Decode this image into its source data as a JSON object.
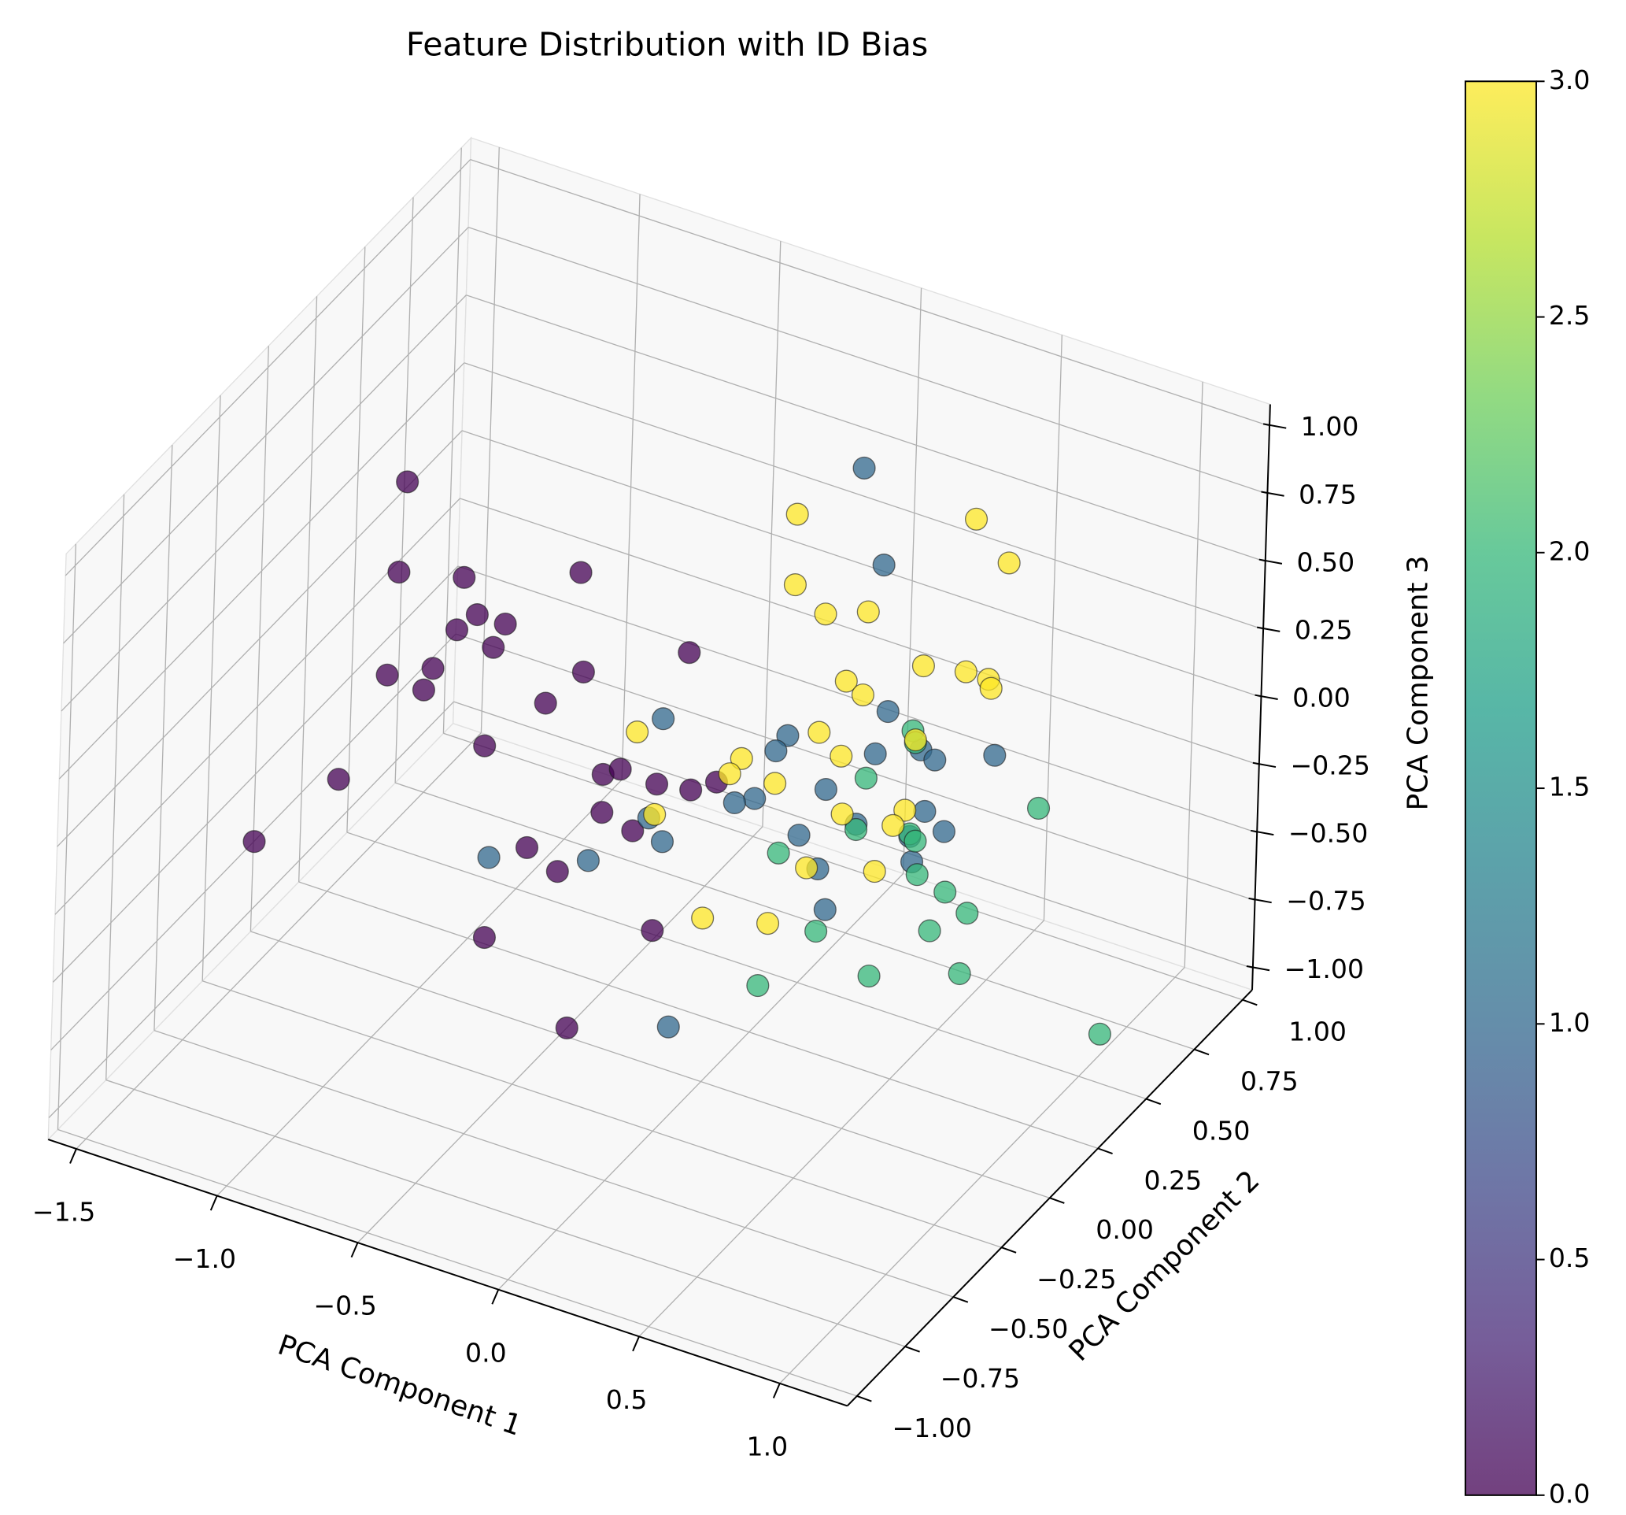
{
  "chart_data": {
    "type": "scatter3d",
    "title": "Feature Distribution with ID Bias",
    "xlabel": "PCA Component 1",
    "ylabel": "PCA Component 2",
    "zlabel": "PCA Component 3",
    "x": [
      -0.9,
      -0.92,
      -0.69,
      -0.28,
      -0.64,
      -0.54,
      -0.71,
      -0.58,
      -0.79,
      -0.95,
      -0.82,
      -0.26,
      0.11,
      -0.39,
      -0.6,
      -1.11,
      -0.18,
      -0.12,
      0.01,
      0.13,
      0.22,
      -0.18,
      -0.07,
      -0.44,
      -0.33,
      -1.4,
      -0.58,
      0.01,
      -0.28,
      0.18,
      0.26,
      -0.5,
      0.29,
      -0.06,
      -0.1,
      0.25,
      0.41,
      0.46,
      0.67,
      0.08,
      -0.17,
      -0.24,
      0.43,
      0.19,
      -0.01,
      0.5,
      0.38,
      -0.49,
      -0.54,
      -0.77,
      0.06,
      0.39,
      -0.42,
      0.09,
      -0.12,
      0.38,
      0.39,
      0.22,
      0.83,
      0.19,
      0.38,
      0.4,
      -0.08,
      0.41,
      0.51,
      0.59,
      0.46,
      0.06,
      0.19,
      0.58,
      0.57,
      1.07,
      -0.05,
      0.58,
      0.7,
      -0.05,
      0.06,
      0.21,
      0.41,
      0.56,
      0.64,
      0.65,
      0.14,
      0.2,
      -0.59,
      0.05,
      0.13,
      -0.22,
      -0.26,
      -0.1,
      0.39,
      0.14,
      0.36,
      0.32,
      -0.52,
      0.02,
      0.26,
      -0.34,
      -0.11
    ],
    "y": [
      -0.3,
      -0.3,
      -0.3,
      -0.3,
      -0.3,
      -0.3,
      -0.3,
      -0.3,
      -0.3,
      -0.3,
      -0.3,
      -0.3,
      -0.3,
      -0.3,
      -0.3,
      -0.3,
      -0.3,
      -0.3,
      -0.3,
      -0.3,
      -0.3,
      -0.3,
      -0.3,
      -0.3,
      -0.3,
      -0.3,
      -0.3,
      -0.3,
      -0.3,
      0.5,
      0.5,
      0.5,
      0.5,
      0.5,
      0.5,
      0.5,
      0.5,
      0.5,
      0.5,
      0.5,
      0.5,
      0.5,
      0.5,
      0.5,
      0.5,
      0.5,
      0.5,
      0.5,
      0.5,
      0,
      0.5,
      0.5,
      0,
      0.5,
      0,
      0.5,
      0.5,
      0.5,
      0.5,
      0.5,
      0.5,
      0.5,
      0.5,
      0.5,
      0.5,
      0.5,
      0.5,
      0.5,
      0,
      0,
      0.5,
      0.5,
      0.5,
      0.5,
      0.5,
      0.5,
      0.5,
      0.5,
      0.5,
      0.5,
      0.5,
      0.5,
      0.5,
      0.5,
      0.5,
      0.5,
      0.5,
      0.5,
      0.5,
      0.5,
      0.5,
      0.5,
      0.5,
      0.5,
      0.5,
      0.5,
      0.5,
      0.5,
      0.5
    ],
    "z": [
      1.04,
      0.7,
      0.76,
      0.92,
      0.64,
      0.64,
      0.56,
      0.54,
      0.39,
      0.31,
      0.3,
      0.56,
      0.76,
      0.4,
      0.17,
      -0.13,
      0.21,
      0.25,
      0.24,
      0.26,
      0.32,
      0.07,
      0.04,
      -0.15,
      -0.2,
      -0.46,
      -0.53,
      -0.3,
      -0.76,
      0.88,
      0.55,
      -0.28,
      0.02,
      -0.19,
      -0.26,
      -0.15,
      -0.08,
      -0.1,
      -0.01,
      -0.34,
      -0.46,
      -0.5,
      -0.3,
      -0.43,
      -0.54,
      -0.35,
      -0.41,
      -0.73,
      -0.66,
      -0.52,
      -0.64,
      -0.5,
      -0.41,
      -0.78,
      -0.92,
      -0.02,
      -0.06,
      -0.25,
      -0.15,
      -0.45,
      -0.4,
      -0.42,
      -0.63,
      -0.54,
      -0.57,
      -0.62,
      -0.73,
      -0.87,
      -0.66,
      -0.49,
      -0.85,
      -0.9,
      0.63,
      0.83,
      0.71,
      0.37,
      0.3,
      0.36,
      0.23,
      0.26,
      0.26,
      0.23,
      0.08,
      0.05,
      -0.36,
      -0.14,
      -0.2,
      -0.33,
      -0.4,
      -0.38,
      -0.05,
      -0.41,
      -0.32,
      -0.39,
      -0.64,
      -0.65,
      -0.58,
      -0.96,
      -0.9
    ],
    "values": [
      0,
      0,
      0,
      0,
      0,
      0,
      0,
      0,
      0,
      0,
      0,
      0,
      0,
      0,
      0,
      0,
      0,
      0,
      0,
      0,
      0,
      0,
      0,
      0,
      0,
      0,
      0,
      0,
      0,
      1,
      1,
      1,
      1,
      1,
      1,
      1,
      1,
      1,
      1,
      1,
      1,
      1,
      1,
      1,
      1,
      1,
      1,
      1,
      1,
      1,
      1,
      1,
      1,
      1,
      1,
      2,
      2,
      2,
      2,
      2,
      2,
      2,
      2,
      2,
      2,
      2,
      2,
      2,
      2,
      2,
      2,
      2,
      3,
      3,
      3,
      3,
      3,
      3,
      3,
      3,
      3,
      3,
      3,
      3,
      3,
      3,
      3,
      3,
      3,
      3,
      3,
      3,
      3,
      3,
      3,
      3,
      3,
      3,
      3
    ],
    "colormap": [
      "#440154",
      "#482878",
      "#3e4989",
      "#31688e",
      "#26828e",
      "#1f9e89",
      "#35b779",
      "#6ece58",
      "#b5de2b",
      "#fde725"
    ],
    "alpha": 0.75,
    "clim": [
      0,
      3
    ],
    "cticks": [
      {
        "value": 0,
        "label": "0.0"
      },
      0.5,
      {
        "value": 1,
        "label": "1.0"
      },
      1.5,
      {
        "value": 2,
        "label": "2.0"
      },
      2.5,
      {
        "value": 3,
        "label": "3.0"
      }
    ],
    "xlim": [
      -1.6,
      1.24
    ],
    "ylim": [
      -1.05,
      1.05
    ],
    "zlim": [
      -1.08,
      1.08
    ],
    "xticks": [
      {
        "value": -1.5,
        "label": "−1.5"
      },
      {
        "value": -1,
        "label": "−1.0"
      },
      {
        "value": -0.5,
        "label": "−0.5"
      },
      {
        "value": 0,
        "label": "0.0"
      },
      0.5,
      {
        "value": 1,
        "label": "1.0"
      }
    ],
    "yticks": [
      {
        "value": -1,
        "label": "−1.00"
      },
      {
        "value": -0.75,
        "label": "−0.75"
      },
      {
        "value": -0.5,
        "label": "−0.50"
      },
      {
        "value": -0.25,
        "label": "−0.25"
      },
      {
        "value": 0,
        "label": "0.00"
      },
      0.25,
      {
        "value": 0.5,
        "label": "0.50"
      },
      0.75,
      {
        "value": 1,
        "label": "1.00"
      }
    ],
    "zticks": [
      {
        "value": -1,
        "label": "−1.00"
      },
      {
        "value": -0.75,
        "label": "−0.75"
      },
      {
        "value": -0.5,
        "label": "−0.50"
      },
      {
        "value": -0.25,
        "label": "−0.25"
      },
      {
        "value": 0,
        "label": "0.00"
      },
      0.25,
      {
        "value": 0.5,
        "label": "0.50"
      },
      0.75,
      {
        "value": 1,
        "label": "1.00"
      }
    ],
    "grid": true
  }
}
